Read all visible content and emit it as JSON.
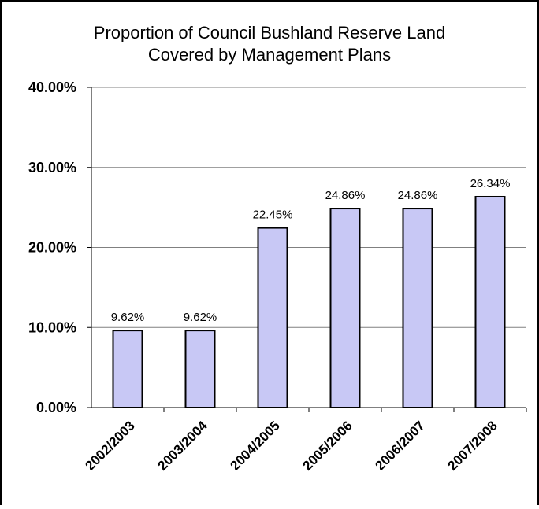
{
  "chart_data": {
    "type": "bar",
    "title": [
      "Proportion of Council Bushland Reserve Land",
      "Covered by Management Plans"
    ],
    "xlabel": "",
    "ylabel": "",
    "categories": [
      "2002/2003",
      "2003/2004",
      "2004/2005",
      "2005/2006",
      "2006/2007",
      "2007/2008"
    ],
    "values": [
      9.62,
      9.62,
      22.45,
      24.86,
      24.86,
      26.34
    ],
    "data_labels": [
      "9.62%",
      "9.62%",
      "22.45%",
      "24.86%",
      "24.86%",
      "26.34%"
    ],
    "ylim": [
      0,
      40
    ],
    "yticks": [
      0,
      10,
      20,
      30,
      40
    ],
    "ytick_labels": [
      "0.00%",
      "10.00%",
      "20.00%",
      "30.00%",
      "40.00%"
    ],
    "grid": true,
    "legend": "none",
    "colors": {
      "bar_fill": "#c8c8f5",
      "bar_stroke": "#000000",
      "grid": "#808080",
      "axis": "#000000",
      "text": "#000000"
    }
  }
}
